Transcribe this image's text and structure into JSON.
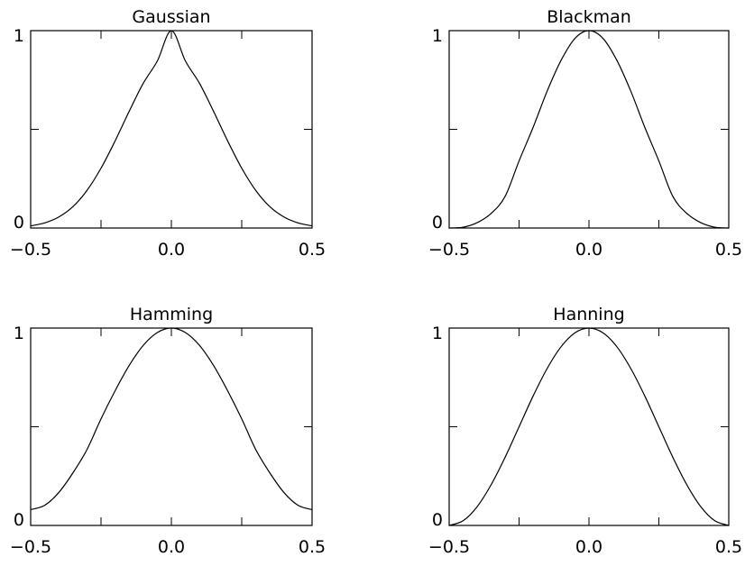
{
  "chart_data": [
    {
      "type": "line",
      "title": "Gaussian",
      "xlim": [
        -0.5,
        0.5
      ],
      "ylim": [
        0,
        1
      ],
      "xticks": [
        -0.5,
        0.0,
        0.5
      ],
      "xtick_labels": [
        "−0.5",
        "0.0",
        "0.5"
      ],
      "yticks": [
        0,
        1
      ],
      "ytick_labels": [
        "0",
        "1"
      ],
      "x": [
        -0.5,
        -0.45,
        -0.4,
        -0.35,
        -0.3,
        -0.25,
        -0.2,
        -0.15,
        -0.1,
        -0.05,
        0.0,
        0.05,
        0.1,
        0.15,
        0.2,
        0.25,
        0.3,
        0.35,
        0.4,
        0.45,
        0.5
      ],
      "y": [
        0.011,
        0.026,
        0.056,
        0.108,
        0.19,
        0.303,
        0.441,
        0.591,
        0.733,
        0.846,
        1.0,
        0.846,
        0.733,
        0.591,
        0.441,
        0.303,
        0.19,
        0.108,
        0.056,
        0.026,
        0.011
      ],
      "grid": false
    },
    {
      "type": "line",
      "title": "Blackman",
      "xlim": [
        -0.5,
        0.5
      ],
      "ylim": [
        0,
        1
      ],
      "xticks": [
        -0.5,
        0.0,
        0.5
      ],
      "xtick_labels": [
        "−0.5",
        "0.0",
        "0.5"
      ],
      "yticks": [
        0,
        1
      ],
      "ytick_labels": [
        "0",
        "1"
      ],
      "x": [
        -0.5,
        -0.45,
        -0.4,
        -0.35,
        -0.3,
        -0.25,
        -0.2,
        -0.15,
        -0.1,
        -0.05,
        0.0,
        0.05,
        0.1,
        0.15,
        0.2,
        0.25,
        0.3,
        0.35,
        0.4,
        0.45,
        0.5
      ],
      "y": [
        0.0,
        0.004,
        0.027,
        0.074,
        0.16,
        0.34,
        0.509,
        0.692,
        0.849,
        0.961,
        1.0,
        0.961,
        0.849,
        0.692,
        0.509,
        0.34,
        0.16,
        0.074,
        0.027,
        0.004,
        0.0
      ],
      "grid": false
    },
    {
      "type": "line",
      "title": "Hamming",
      "xlim": [
        -0.5,
        0.5
      ],
      "ylim": [
        0,
        1
      ],
      "xticks": [
        -0.5,
        0.0,
        0.5
      ],
      "xtick_labels": [
        "−0.5",
        "0.0",
        "0.5"
      ],
      "yticks": [
        0,
        1
      ],
      "ytick_labels": [
        "0",
        "1"
      ],
      "x": [
        -0.5,
        -0.45,
        -0.4,
        -0.35,
        -0.3,
        -0.25,
        -0.2,
        -0.15,
        -0.1,
        -0.05,
        0.0,
        0.05,
        0.1,
        0.15,
        0.2,
        0.25,
        0.3,
        0.35,
        0.4,
        0.45,
        0.5
      ],
      "y": [
        0.08,
        0.102,
        0.167,
        0.266,
        0.384,
        0.54,
        0.682,
        0.81,
        0.912,
        0.977,
        1.0,
        0.977,
        0.912,
        0.81,
        0.682,
        0.54,
        0.384,
        0.266,
        0.167,
        0.102,
        0.08
      ],
      "grid": false
    },
    {
      "type": "line",
      "title": "Hanning",
      "xlim": [
        -0.5,
        0.5
      ],
      "ylim": [
        0,
        1
      ],
      "xticks": [
        -0.5,
        0.0,
        0.5
      ],
      "xtick_labels": [
        "−0.5",
        "0.0",
        "0.5"
      ],
      "yticks": [
        0,
        1
      ],
      "ytick_labels": [
        "0",
        "1"
      ],
      "x": [
        -0.5,
        -0.45,
        -0.4,
        -0.35,
        -0.3,
        -0.25,
        -0.2,
        -0.15,
        -0.1,
        -0.05,
        0.0,
        0.05,
        0.1,
        0.15,
        0.2,
        0.25,
        0.3,
        0.35,
        0.4,
        0.45,
        0.5
      ],
      "y": [
        0.0,
        0.024,
        0.095,
        0.206,
        0.345,
        0.5,
        0.655,
        0.794,
        0.905,
        0.976,
        1.0,
        0.976,
        0.905,
        0.794,
        0.655,
        0.5,
        0.345,
        0.206,
        0.095,
        0.024,
        0.0
      ],
      "grid": false
    }
  ]
}
